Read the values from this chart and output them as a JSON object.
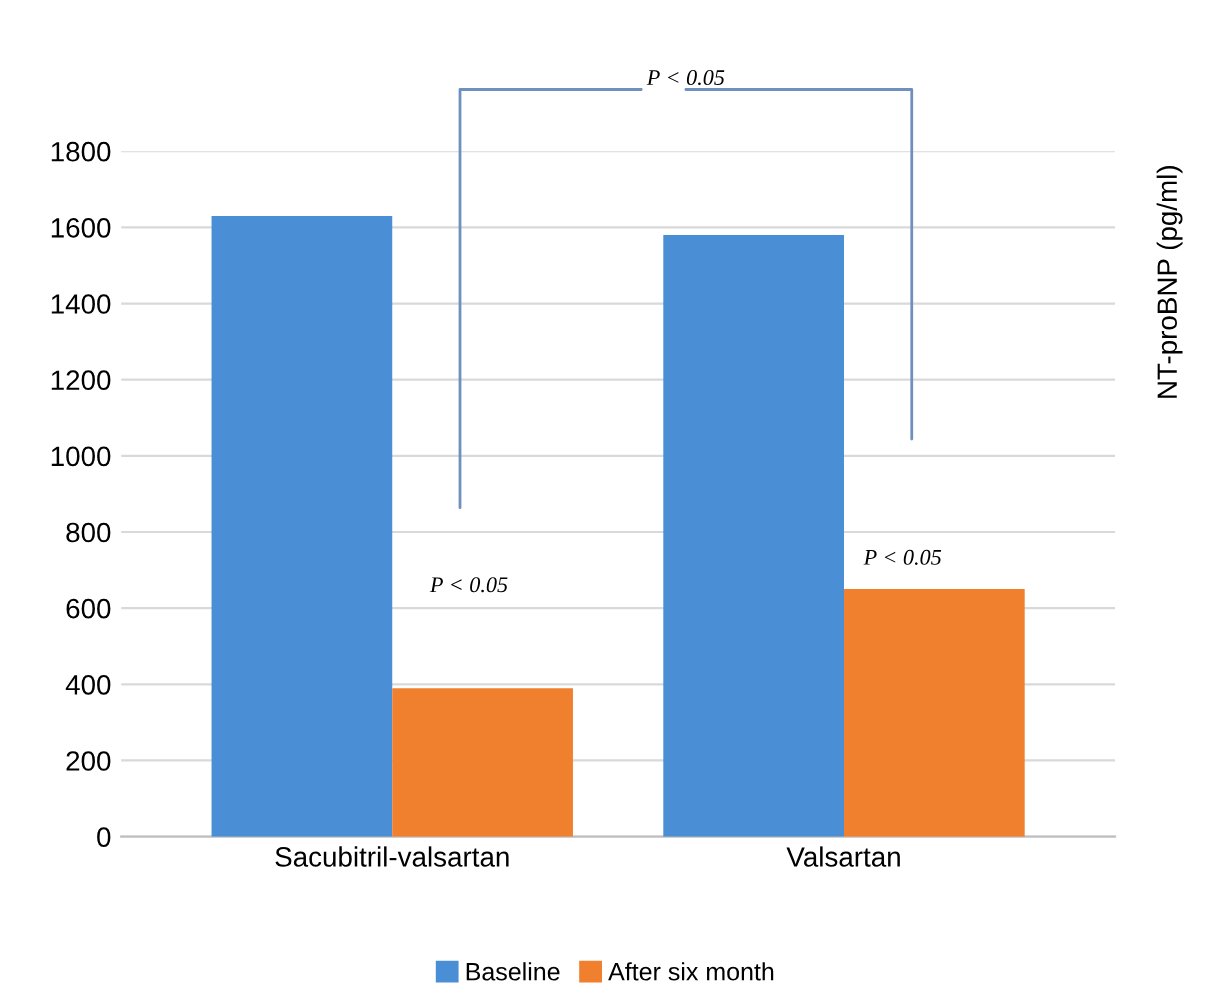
{
  "chart_data": {
    "type": "bar",
    "categories": [
      "Sacubitril-valsartan",
      "Valsartan"
    ],
    "series": [
      {
        "name": "Baseline",
        "color": "#4a8fd6",
        "values": [
          1630,
          1580
        ]
      },
      {
        "name": "After six month",
        "color": "#f07f2e",
        "values": [
          390,
          650
        ]
      }
    ],
    "ylabel": "NT-proBNP (pg/ml)",
    "ylim": [
      0,
      1800
    ],
    "yticks": [
      0,
      200,
      400,
      600,
      800,
      1000,
      1200,
      1400,
      1600,
      1800
    ],
    "grid": "y",
    "legend": "bottom",
    "annotations": [
      "P < 0.05",
      "P < 0.05",
      "P < 0.05"
    ]
  }
}
